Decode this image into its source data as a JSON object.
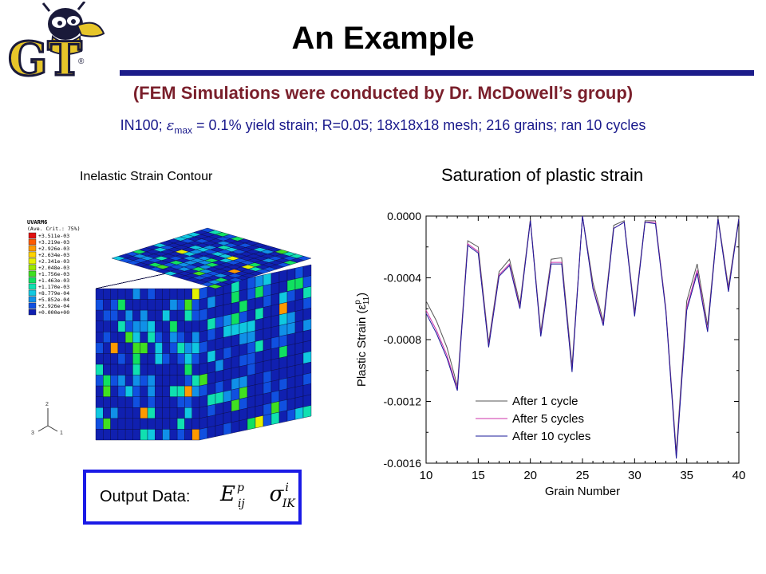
{
  "slide": {
    "title": "An Example",
    "subtitle": "(FEM Simulations were conducted by Dr. McDowell’s group)",
    "info": {
      "prefix": "IN100;  ",
      "eps_symbol": "ε",
      "eps_sub": "max",
      "rest": " = 0.1% yield strain; R=0.05; 18x18x18 mesh; 216 grains; ran 10 cycles"
    },
    "contour_caption": "Inelastic Strain Contour",
    "plot_title": "Saturation of plastic strain"
  },
  "logo": {
    "letters": "GT",
    "mark": "®",
    "gold": "#e6c52a",
    "navy": "#1a1a3a"
  },
  "fem_legend": {
    "header1": "UVARM6",
    "header2": "(Ave. Crit.: 75%)",
    "entries": [
      {
        "label": "+3.511e-03",
        "color": "#e01010"
      },
      {
        "label": "+3.219e-03",
        "color": "#ff5a00"
      },
      {
        "label": "+2.926e-03",
        "color": "#ff9a00"
      },
      {
        "label": "+2.634e-03",
        "color": "#ffd200"
      },
      {
        "label": "+2.341e-03",
        "color": "#e4f000"
      },
      {
        "label": "+2.048e-03",
        "color": "#9ae800"
      },
      {
        "label": "+1.756e-03",
        "color": "#40e020"
      },
      {
        "label": "+1.463e-03",
        "color": "#10e060"
      },
      {
        "label": "+1.170e-03",
        "color": "#10e0b0"
      },
      {
        "label": "+8.779e-04",
        "color": "#10c8e0"
      },
      {
        "label": "+5.852e-04",
        "color": "#1090e8"
      },
      {
        "label": "+2.926e-04",
        "color": "#1050e0"
      },
      {
        "label": "+0.000e+00",
        "color": "#1020b0"
      }
    ],
    "triad": {
      "x": "1",
      "y": "2",
      "z": "3"
    }
  },
  "output": {
    "label": "Output Data:",
    "e_symbol": "E",
    "e_sup": "p",
    "e_sub": "ij",
    "s_symbol": "σ",
    "s_sup": "i",
    "s_sub": "IK"
  },
  "chart_data": {
    "type": "line",
    "title": "Saturation of plastic strain",
    "xlabel": "Grain Number",
    "ylabel": "Plastic Strain (ε",
    "ylabel_sup": "p",
    "ylabel_sub": "11",
    "ylabel_close": ")",
    "xlim": [
      10,
      40
    ],
    "ylim": [
      -0.0016,
      0.0
    ],
    "xticks": [
      10,
      15,
      20,
      25,
      30,
      35,
      40
    ],
    "yticks": [
      0.0,
      -0.0004,
      -0.0008,
      -0.0012,
      -0.0016
    ],
    "ytick_labels": [
      "0.0000",
      "-0.0004",
      "-0.0008",
      "-0.0012",
      "-0.0016"
    ],
    "legend_position": "bottom-center",
    "x": [
      10,
      11,
      12,
      13,
      14,
      15,
      16,
      17,
      18,
      19,
      20,
      21,
      22,
      23,
      24,
      25,
      26,
      27,
      28,
      29,
      30,
      31,
      32,
      33,
      34,
      35,
      36,
      37,
      38,
      39,
      40
    ],
    "series": [
      {
        "name": "After 1  cycle",
        "color": "#555555",
        "values": [
          -0.00055,
          -0.00068,
          -0.00085,
          -0.0011,
          -0.00016,
          -0.0002,
          -0.00082,
          -0.00036,
          -0.00028,
          -0.00057,
          -2e-05,
          -0.00075,
          -0.00028,
          -0.00027,
          -0.00097,
          0.0,
          -0.00043,
          -0.00068,
          -6e-05,
          -3e-05,
          -0.00062,
          -3e-05,
          -3e-05,
          -0.0006,
          -0.00153,
          -0.00055,
          -0.00031,
          -0.00071,
          -1e-05,
          -0.00046,
          -1e-05
        ]
      },
      {
        "name": "After 5  cycles",
        "color": "#cc33aa",
        "values": [
          -0.00061,
          -0.00074,
          -0.0009,
          -0.00112,
          -0.00018,
          -0.00023,
          -0.00084,
          -0.00038,
          -0.00031,
          -0.00059,
          -3e-05,
          -0.00077,
          -0.0003,
          -0.0003,
          -0.001,
          0.0,
          -0.00046,
          -0.0007,
          -8e-05,
          -4e-05,
          -0.00064,
          -4e-05,
          -4e-05,
          -0.00061,
          -0.00156,
          -0.00059,
          -0.00035,
          -0.00074,
          -2e-05,
          -0.00048,
          -2e-05
        ]
      },
      {
        "name": "After 10 cycles",
        "color": "#1a1a99",
        "values": [
          -0.00063,
          -0.00076,
          -0.00092,
          -0.00113,
          -0.00019,
          -0.00024,
          -0.00085,
          -0.00039,
          -0.00032,
          -0.0006,
          -3e-05,
          -0.00078,
          -0.00031,
          -0.00031,
          -0.00101,
          0.0,
          -0.00047,
          -0.00071,
          -8e-05,
          -4e-05,
          -0.00065,
          -4e-05,
          -5e-05,
          -0.00062,
          -0.00157,
          -0.00061,
          -0.00037,
          -0.00075,
          -2e-05,
          -0.00049,
          -2e-05
        ]
      }
    ]
  }
}
